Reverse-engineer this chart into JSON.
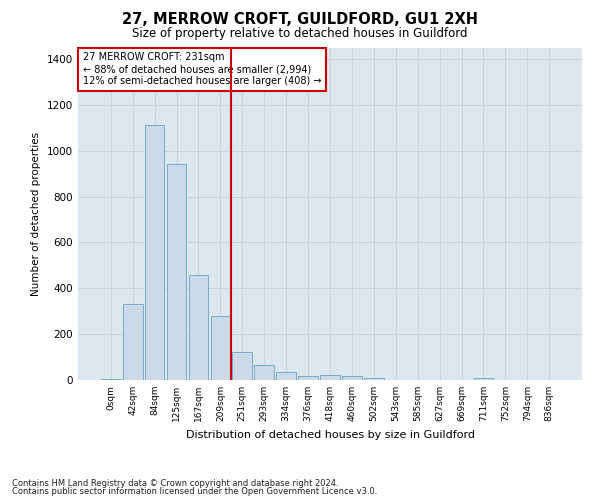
{
  "title": "27, MERROW CROFT, GUILDFORD, GU1 2XH",
  "subtitle": "Size of property relative to detached houses in Guildford",
  "xlabel": "Distribution of detached houses by size in Guildford",
  "ylabel": "Number of detached properties",
  "bar_labels": [
    "0sqm",
    "42sqm",
    "84sqm",
    "125sqm",
    "167sqm",
    "209sqm",
    "251sqm",
    "293sqm",
    "334sqm",
    "376sqm",
    "418sqm",
    "460sqm",
    "502sqm",
    "543sqm",
    "585sqm",
    "627sqm",
    "669sqm",
    "711sqm",
    "752sqm",
    "794sqm",
    "836sqm"
  ],
  "bar_values": [
    5,
    330,
    1110,
    940,
    460,
    280,
    120,
    65,
    35,
    18,
    20,
    18,
    10,
    0,
    0,
    0,
    0,
    8,
    0,
    0,
    0
  ],
  "bar_color": "#ccd9e8",
  "bar_edge_color": "#7aaac8",
  "ylim": [
    0,
    1450
  ],
  "yticks": [
    0,
    200,
    400,
    600,
    800,
    1000,
    1200,
    1400
  ],
  "annotation_line1": "27 MERROW CROFT: 231sqm",
  "annotation_line2": "← 88% of detached houses are smaller (2,994)",
  "annotation_line3": "12% of semi-detached houses are larger (408) →",
  "annotation_box_color": "#ffffff",
  "annotation_box_edge": "#cc0000",
  "vline_color": "#cc0000",
  "grid_color": "#c8d0da",
  "background_color": "#dce8f0",
  "footer1": "Contains HM Land Registry data © Crown copyright and database right 2024.",
  "footer2": "Contains public sector information licensed under the Open Government Licence v3.0."
}
